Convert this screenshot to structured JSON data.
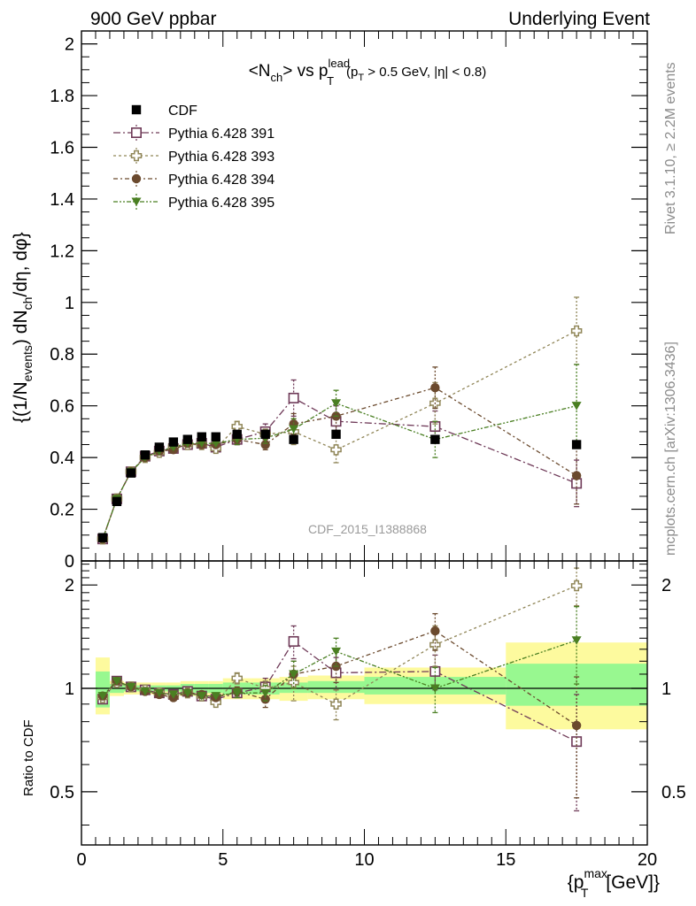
{
  "header": {
    "left": "900 GeV ppbar",
    "right": "Underlying Event"
  },
  "side": {
    "rivet": "Rivet 3.1.10, ≥ 2.2M events",
    "mcplots": "mcplots.cern.ch [arXiv:1306.3436]"
  },
  "watermark": "CDF_2015_I1388868",
  "chart_data": [
    {
      "type": "scatter",
      "title_parts": {
        "a": "<N",
        "a_sub": "ch",
        "b": "> vs p",
        "b_sup": "lead",
        "b_sub": "T",
        "cut": "(p",
        "cut_sub": "T",
        "cut_rest": " > 0.5 GeV, |η| < 0.8)"
      },
      "ylabel_parts": {
        "a": "{(1/N",
        "a_sub": "events",
        "b": ") dN",
        "b_sub": "ch",
        "c": "/dη, dφ}"
      },
      "xlim": [
        0,
        20
      ],
      "ylim": [
        0,
        2.05
      ],
      "yticks": [
        "0",
        "0.2",
        "0.4",
        "0.6",
        "0.8",
        "1",
        "1.2",
        "1.4",
        "1.6",
        "1.8",
        "2"
      ],
      "grid": false,
      "legend_position": "top-left",
      "series": [
        {
          "name": "CDF",
          "color": "#000000",
          "marker": "filled-square",
          "x": [
            0.75,
            1.25,
            1.75,
            2.25,
            2.75,
            3.25,
            3.75,
            4.25,
            4.75,
            5.5,
            6.5,
            7.5,
            9.0,
            12.5,
            17.5
          ],
          "y": [
            0.09,
            0.23,
            0.34,
            0.41,
            0.44,
            0.46,
            0.47,
            0.48,
            0.48,
            0.49,
            0.49,
            0.47,
            0.49,
            0.47,
            0.45
          ]
        },
        {
          "name": "Pythia 6.428 391",
          "color": "#6f3a58",
          "marker": "open-square",
          "x": [
            0.75,
            1.25,
            1.75,
            2.25,
            2.75,
            3.25,
            3.75,
            4.25,
            4.75,
            5.5,
            6.5,
            7.5,
            9.0,
            12.5,
            17.5
          ],
          "y": [
            0.085,
            0.24,
            0.345,
            0.405,
            0.425,
            0.435,
            0.45,
            0.455,
            0.44,
            0.47,
            0.5,
            0.63,
            0.54,
            0.52,
            0.3
          ],
          "err": [
            0,
            0,
            0,
            0,
            0,
            0,
            0,
            0,
            0,
            0.02,
            0.03,
            0.07,
            0.06,
            0.06,
            0.09
          ]
        },
        {
          "name": "Pythia 6.428 393",
          "color": "#908658",
          "marker": "open-cross",
          "x": [
            0.75,
            1.25,
            1.75,
            2.25,
            2.75,
            3.25,
            3.75,
            4.25,
            4.75,
            5.5,
            6.5,
            7.5,
            9.0,
            12.5,
            17.5
          ],
          "y": [
            0.085,
            0.24,
            0.345,
            0.4,
            0.42,
            0.44,
            0.45,
            0.45,
            0.435,
            0.52,
            0.49,
            0.5,
            0.43,
            0.61,
            0.89
          ],
          "err": [
            0,
            0,
            0,
            0,
            0,
            0,
            0,
            0,
            0,
            0.02,
            0.02,
            0.05,
            0.05,
            0.08,
            0.13
          ]
        },
        {
          "name": "Pythia 6.428 394",
          "color": "#6b4a2e",
          "marker": "filled-circle",
          "x": [
            0.75,
            1.25,
            1.75,
            2.25,
            2.75,
            3.25,
            3.75,
            4.25,
            4.75,
            5.5,
            6.5,
            7.5,
            9.0,
            12.5,
            17.5
          ],
          "y": [
            0.085,
            0.24,
            0.345,
            0.4,
            0.425,
            0.43,
            0.455,
            0.45,
            0.45,
            0.47,
            0.45,
            0.53,
            0.56,
            0.67,
            0.33
          ],
          "err": [
            0,
            0,
            0,
            0,
            0,
            0,
            0,
            0,
            0,
            0.02,
            0.02,
            0.04,
            0.06,
            0.08,
            0.11
          ]
        },
        {
          "name": "Pythia 6.428 395",
          "color": "#4a7f22",
          "marker": "filled-triangle-down",
          "x": [
            0.75,
            1.25,
            1.75,
            2.25,
            2.75,
            3.25,
            3.75,
            4.25,
            4.75,
            5.5,
            6.5,
            7.5,
            9.0,
            12.5,
            17.5
          ],
          "y": [
            0.085,
            0.24,
            0.345,
            0.4,
            0.425,
            0.44,
            0.455,
            0.455,
            0.455,
            0.47,
            0.475,
            0.51,
            0.61,
            0.47,
            0.6
          ],
          "err": [
            0,
            0,
            0,
            0,
            0,
            0,
            0,
            0,
            0,
            0.02,
            0.02,
            0.04,
            0.05,
            0.07,
            0.16
          ]
        }
      ]
    },
    {
      "type": "scatter",
      "ylabel": "Ratio to CDF",
      "xlabel_parts": {
        "a": "{p",
        "sup": "max",
        "sub": "T",
        "b": " [GeV]}"
      },
      "xlim": [
        0,
        20
      ],
      "ylim": [
        0.35,
        2.35
      ],
      "yscale": "log",
      "xticks": [
        "0",
        "5",
        "10",
        "15",
        "20"
      ],
      "yticks": [
        "0.5",
        "1",
        "2"
      ],
      "bands": {
        "edges": [
          0.5,
          1.0,
          1.5,
          2.0,
          2.5,
          3.0,
          3.5,
          4.0,
          4.5,
          5.0,
          6.0,
          7.0,
          8.0,
          10.0,
          15.0,
          20.0
        ],
        "inner_lo": [
          0.88,
          0.97,
          0.98,
          0.98,
          0.98,
          0.98,
          0.97,
          0.97,
          0.97,
          0.96,
          0.96,
          0.97,
          0.97,
          0.96,
          0.89
        ],
        "inner_hi": [
          1.12,
          1.03,
          1.02,
          1.02,
          1.02,
          1.02,
          1.03,
          1.03,
          1.03,
          1.04,
          1.04,
          1.04,
          1.05,
          1.08,
          1.18
        ],
        "outer_lo": [
          0.84,
          0.95,
          0.96,
          0.96,
          0.96,
          0.96,
          0.95,
          0.95,
          0.95,
          0.93,
          0.93,
          0.92,
          0.93,
          0.9,
          0.76
        ],
        "outer_hi": [
          1.23,
          1.05,
          1.04,
          1.04,
          1.04,
          1.04,
          1.05,
          1.05,
          1.05,
          1.07,
          1.07,
          1.08,
          1.09,
          1.15,
          1.36
        ]
      },
      "series": [
        {
          "name": "Pythia 6.428 391",
          "color": "#6f3a58",
          "marker": "open-square",
          "x": [
            0.75,
            1.25,
            1.75,
            2.25,
            2.75,
            3.25,
            3.75,
            4.25,
            4.75,
            5.5,
            6.5,
            7.5,
            9.0,
            12.5,
            17.5
          ],
          "y": [
            0.93,
            1.05,
            1.01,
            0.99,
            0.97,
            0.96,
            0.98,
            0.95,
            0.93,
            0.97,
            1.01,
            1.37,
            1.11,
            1.12,
            0.7
          ],
          "err": [
            0,
            0,
            0,
            0,
            0,
            0,
            0,
            0,
            0,
            0.03,
            0.06,
            0.15,
            0.12,
            0.13,
            0.26
          ]
        },
        {
          "name": "Pythia 6.428 393",
          "color": "#908658",
          "marker": "open-cross",
          "x": [
            0.75,
            1.25,
            1.75,
            2.25,
            2.75,
            3.25,
            3.75,
            4.25,
            4.75,
            5.5,
            6.5,
            7.5,
            9.0,
            12.5,
            17.5
          ],
          "y": [
            0.94,
            1.04,
            1.01,
            0.99,
            0.97,
            0.95,
            0.97,
            0.95,
            0.91,
            1.07,
            1.0,
            1.04,
            0.9,
            1.34,
            1.99
          ],
          "err": [
            0,
            0,
            0,
            0,
            0,
            0,
            0,
            0,
            0,
            0.04,
            0.05,
            0.12,
            0.09,
            0.18,
            0.25
          ]
        },
        {
          "name": "Pythia 6.428 394",
          "color": "#6b4a2e",
          "marker": "filled-circle",
          "x": [
            0.75,
            1.25,
            1.75,
            2.25,
            2.75,
            3.25,
            3.75,
            4.25,
            4.75,
            5.5,
            6.5,
            7.5,
            9.0,
            12.5,
            17.5
          ],
          "y": [
            0.95,
            1.05,
            1.01,
            0.98,
            0.96,
            0.94,
            0.97,
            0.96,
            0.94,
            0.98,
            0.93,
            1.1,
            1.16,
            1.47,
            0.78
          ],
          "err": [
            0,
            0,
            0,
            0,
            0,
            0,
            0,
            0,
            0,
            0.03,
            0.05,
            0.1,
            0.12,
            0.18,
            0.3
          ]
        },
        {
          "name": "Pythia 6.428 395",
          "color": "#4a7f22",
          "marker": "filled-triangle-down",
          "x": [
            0.75,
            1.25,
            1.75,
            2.25,
            2.75,
            3.25,
            3.75,
            4.25,
            4.75,
            5.5,
            6.5,
            7.5,
            9.0,
            12.5,
            17.5
          ],
          "y": [
            0.95,
            1.05,
            1.01,
            0.98,
            0.97,
            0.96,
            0.97,
            0.95,
            0.95,
            0.97,
            0.97,
            1.1,
            1.28,
            1.0,
            1.38
          ],
          "err": [
            0,
            0,
            0,
            0,
            0,
            0,
            0,
            0,
            0,
            0.03,
            0.05,
            0.1,
            0.12,
            0.15,
            0.35
          ]
        }
      ]
    }
  ]
}
